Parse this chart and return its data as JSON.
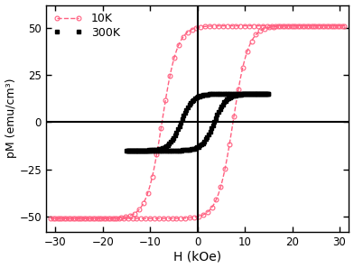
{
  "title": "",
  "xlabel": "H (kOe)",
  "ylabel": "pM (emu/cm³)",
  "xlim": [
    -32,
    32
  ],
  "ylim": [
    -58,
    62
  ],
  "xticks": [
    -30,
    -20,
    -10,
    0,
    10,
    20,
    30
  ],
  "yticks": [
    -50,
    -25,
    0,
    25,
    50
  ],
  "bg_color": "#ffffff",
  "plot_bg_color": "#ffffff",
  "line_10K_color": "#ff6080",
  "line_300K_color": "#000000",
  "legend_10K": "10K",
  "legend_300K": "300K"
}
